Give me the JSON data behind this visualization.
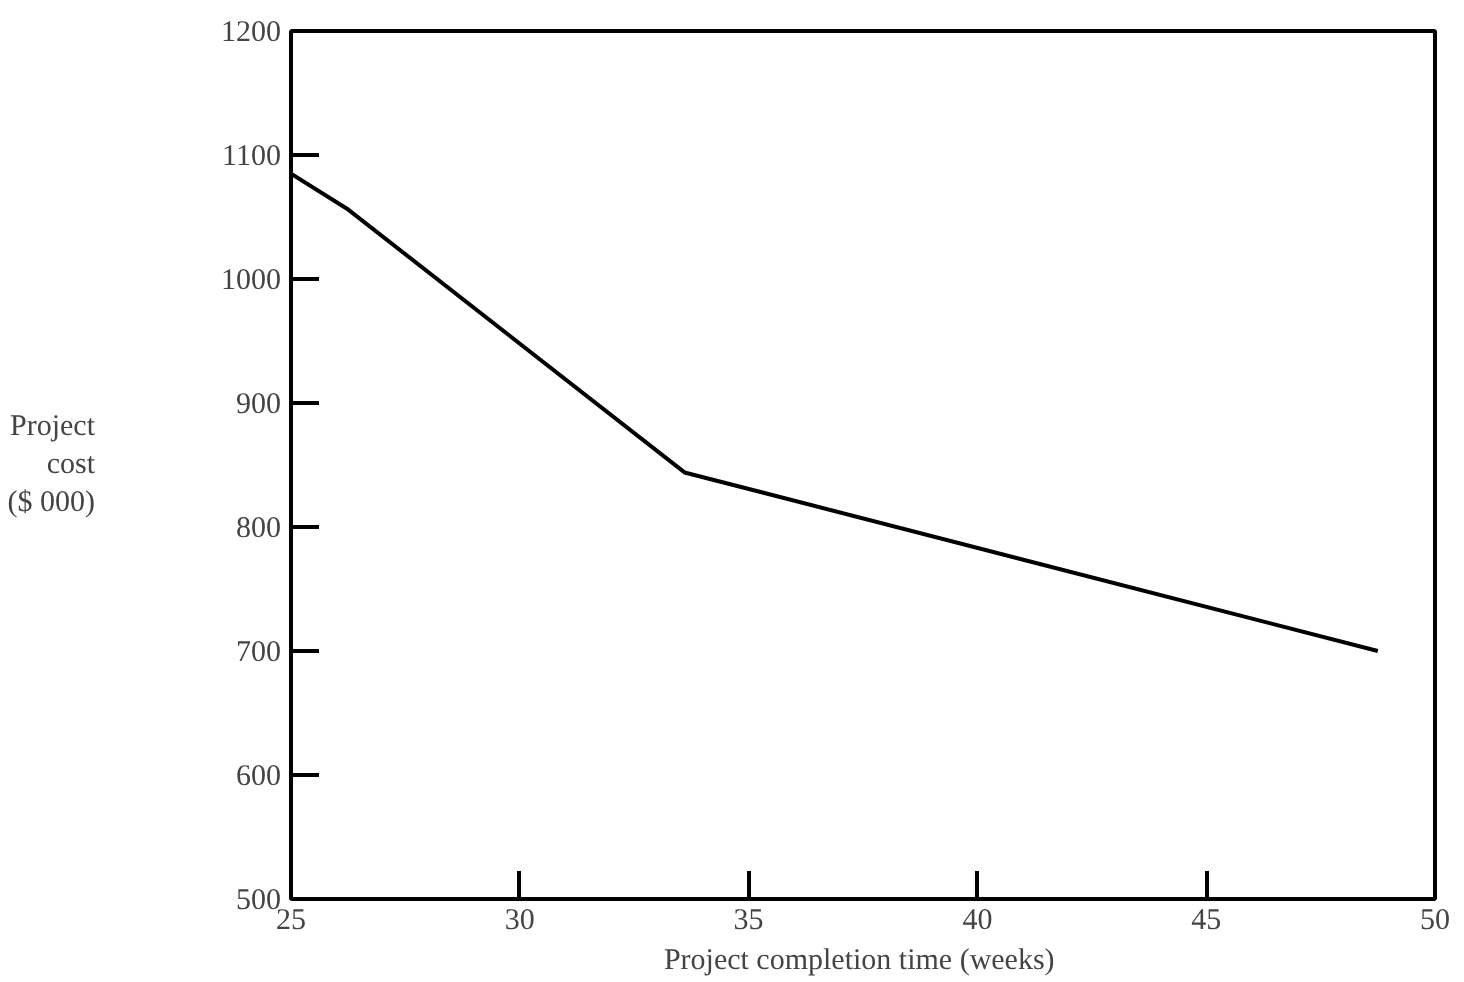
{
  "chart_data": {
    "type": "line",
    "xlabel": "Project completion time  (weeks)",
    "ylabel": "Project\ncost\n($ 000)",
    "x": [
      25,
      26.25,
      33.6,
      48.75
    ],
    "series": [
      {
        "color": "#000000",
        "values": [
          1085,
          1056,
          844,
          700
        ]
      }
    ],
    "xlim": [
      25,
      50
    ],
    "ylim": [
      500,
      1200
    ],
    "xticks": [
      25,
      30,
      35,
      40,
      45,
      50
    ],
    "yticks": [
      500,
      600,
      700,
      800,
      900,
      1000,
      1100,
      1200
    ],
    "grid": false,
    "marker": "none",
    "line_style": "solid"
  }
}
